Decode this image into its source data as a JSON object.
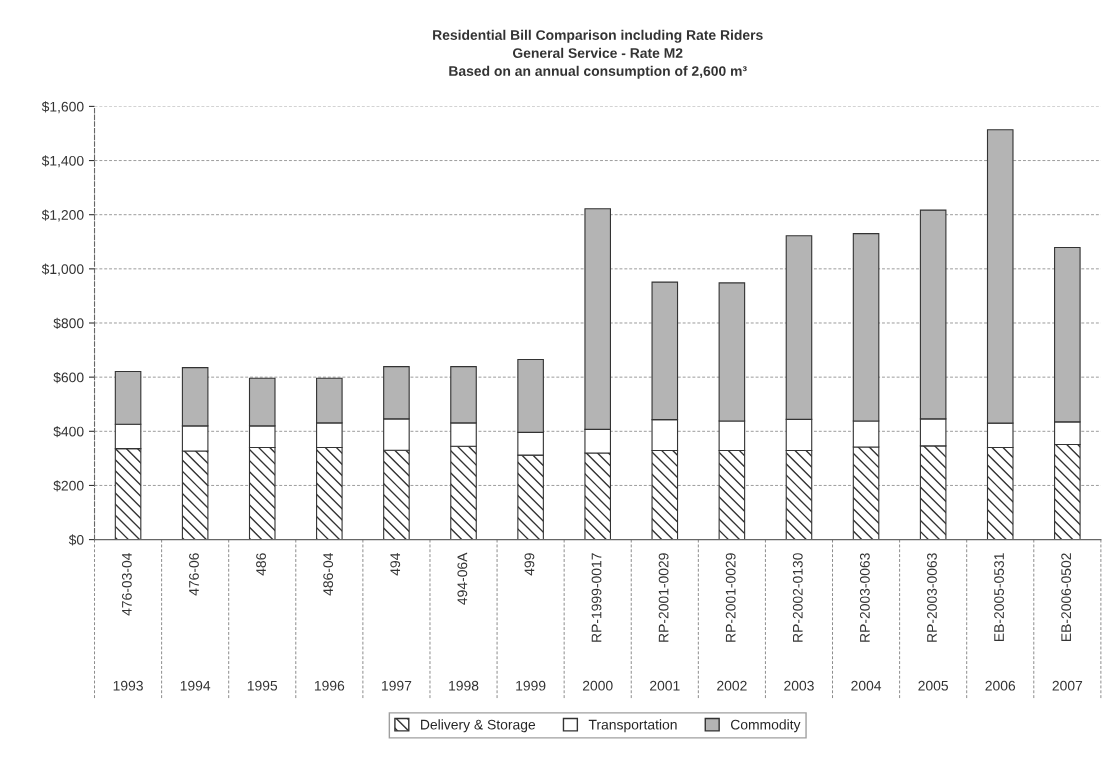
{
  "chart_data": {
    "type": "bar",
    "title": "Residential Bill Comparison including Rate Riders\nGeneral Service - Rate M2\nBased on an annual consumption of 2,600 m³",
    "categories": [
      "476-03-04\n1993",
      "476-06\n1994",
      "486\n1995",
      "486-04\n1996",
      "494\n1997",
      "494-06A\n1998",
      "499\n1999",
      "RP-1999-0017\n2000",
      "RP-2001-0029\n2001",
      "RP-2001-0029\n2002",
      "RP-2002-0130\n2003",
      "RP-2003-0063\n2004",
      "RP-2003-0063\n2005",
      "EB-2005-0531\n2006",
      "EB-2006-0502\n2007"
    ],
    "stacked": true,
    "series": [
      {
        "name": "Delivery & Storage",
        "color": "#333333",
        "values": [
          336,
          327,
          340,
          340,
          330,
          345,
          312,
          320,
          329,
          329,
          329,
          342,
          346,
          340,
          351
        ]
      },
      {
        "name": "Transportation",
        "color": "#ffffff",
        "values": [
          90,
          93,
          80,
          91,
          116,
          86,
          84,
          87,
          114,
          109,
          115,
          96,
          100,
          90,
          84
        ]
      },
      {
        "name": "Commodity",
        "color": "#b4b4b4",
        "values": [
          195,
          215,
          176,
          165,
          193,
          208,
          269,
          815,
          508,
          510,
          678,
          692,
          771,
          1084,
          644
        ]
      }
    ],
    "ylim": [
      0,
      1600
    ],
    "yticks": [
      {
        "value": 0,
        "label": "$0"
      },
      {
        "value": 200,
        "label": "$200"
      },
      {
        "value": 400,
        "label": "$400"
      },
      {
        "value": 600,
        "label": "$600"
      },
      {
        "value": 800,
        "label": "$800"
      },
      {
        "value": 1000,
        "label": "$1,000"
      },
      {
        "value": 1200,
        "label": "$1,200"
      },
      {
        "value": 1400,
        "label": "$1,400"
      },
      {
        "value": 1600,
        "label": "$1,600"
      }
    ],
    "grid": "y",
    "legend": "bottom"
  }
}
